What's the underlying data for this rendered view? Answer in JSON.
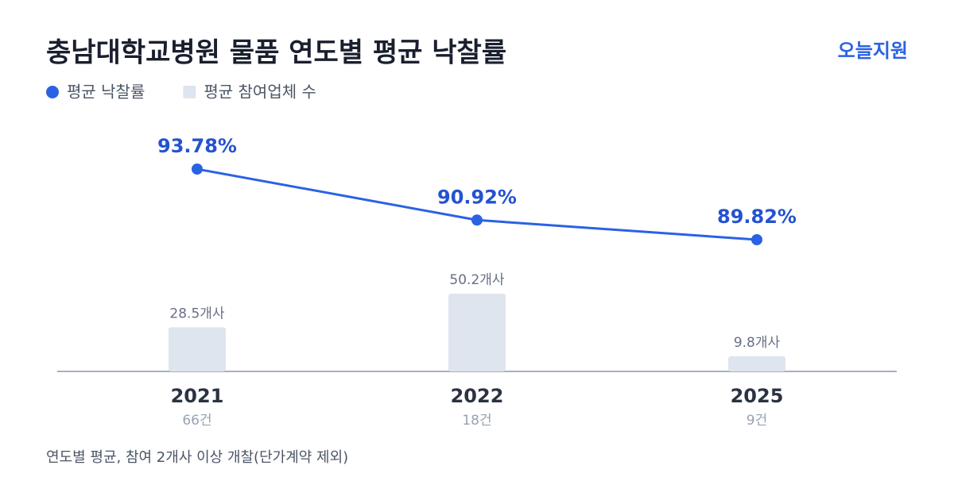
{
  "brand": "오늘지원",
  "chart_data": {
    "type": "combo",
    "title": "충남대학교병원 물품 연도별 평균 낙찰률",
    "categories": [
      "2021",
      "2022",
      "2025"
    ],
    "sublabels": [
      "66건",
      "18건",
      "9건"
    ],
    "series": [
      {
        "name": "평균 낙찰률",
        "kind": "line",
        "color": "#2a62e4",
        "label_color": "#2453d0",
        "values": [
          93.78,
          90.92,
          89.82
        ],
        "value_labels": [
          "93.78%",
          "90.92%",
          "89.82%"
        ]
      },
      {
        "name": "평균 참여업체 수",
        "kind": "bar",
        "color": "#dfe5ee",
        "label_color": "#667085",
        "values": [
          28.5,
          50.2,
          9.8
        ],
        "value_labels": [
          "28.5개사",
          "50.2개사",
          "9.8개사"
        ]
      }
    ],
    "footnote": "연도별 평균, 참여 2개사 이상 개찰(단가계약 제외)"
  }
}
